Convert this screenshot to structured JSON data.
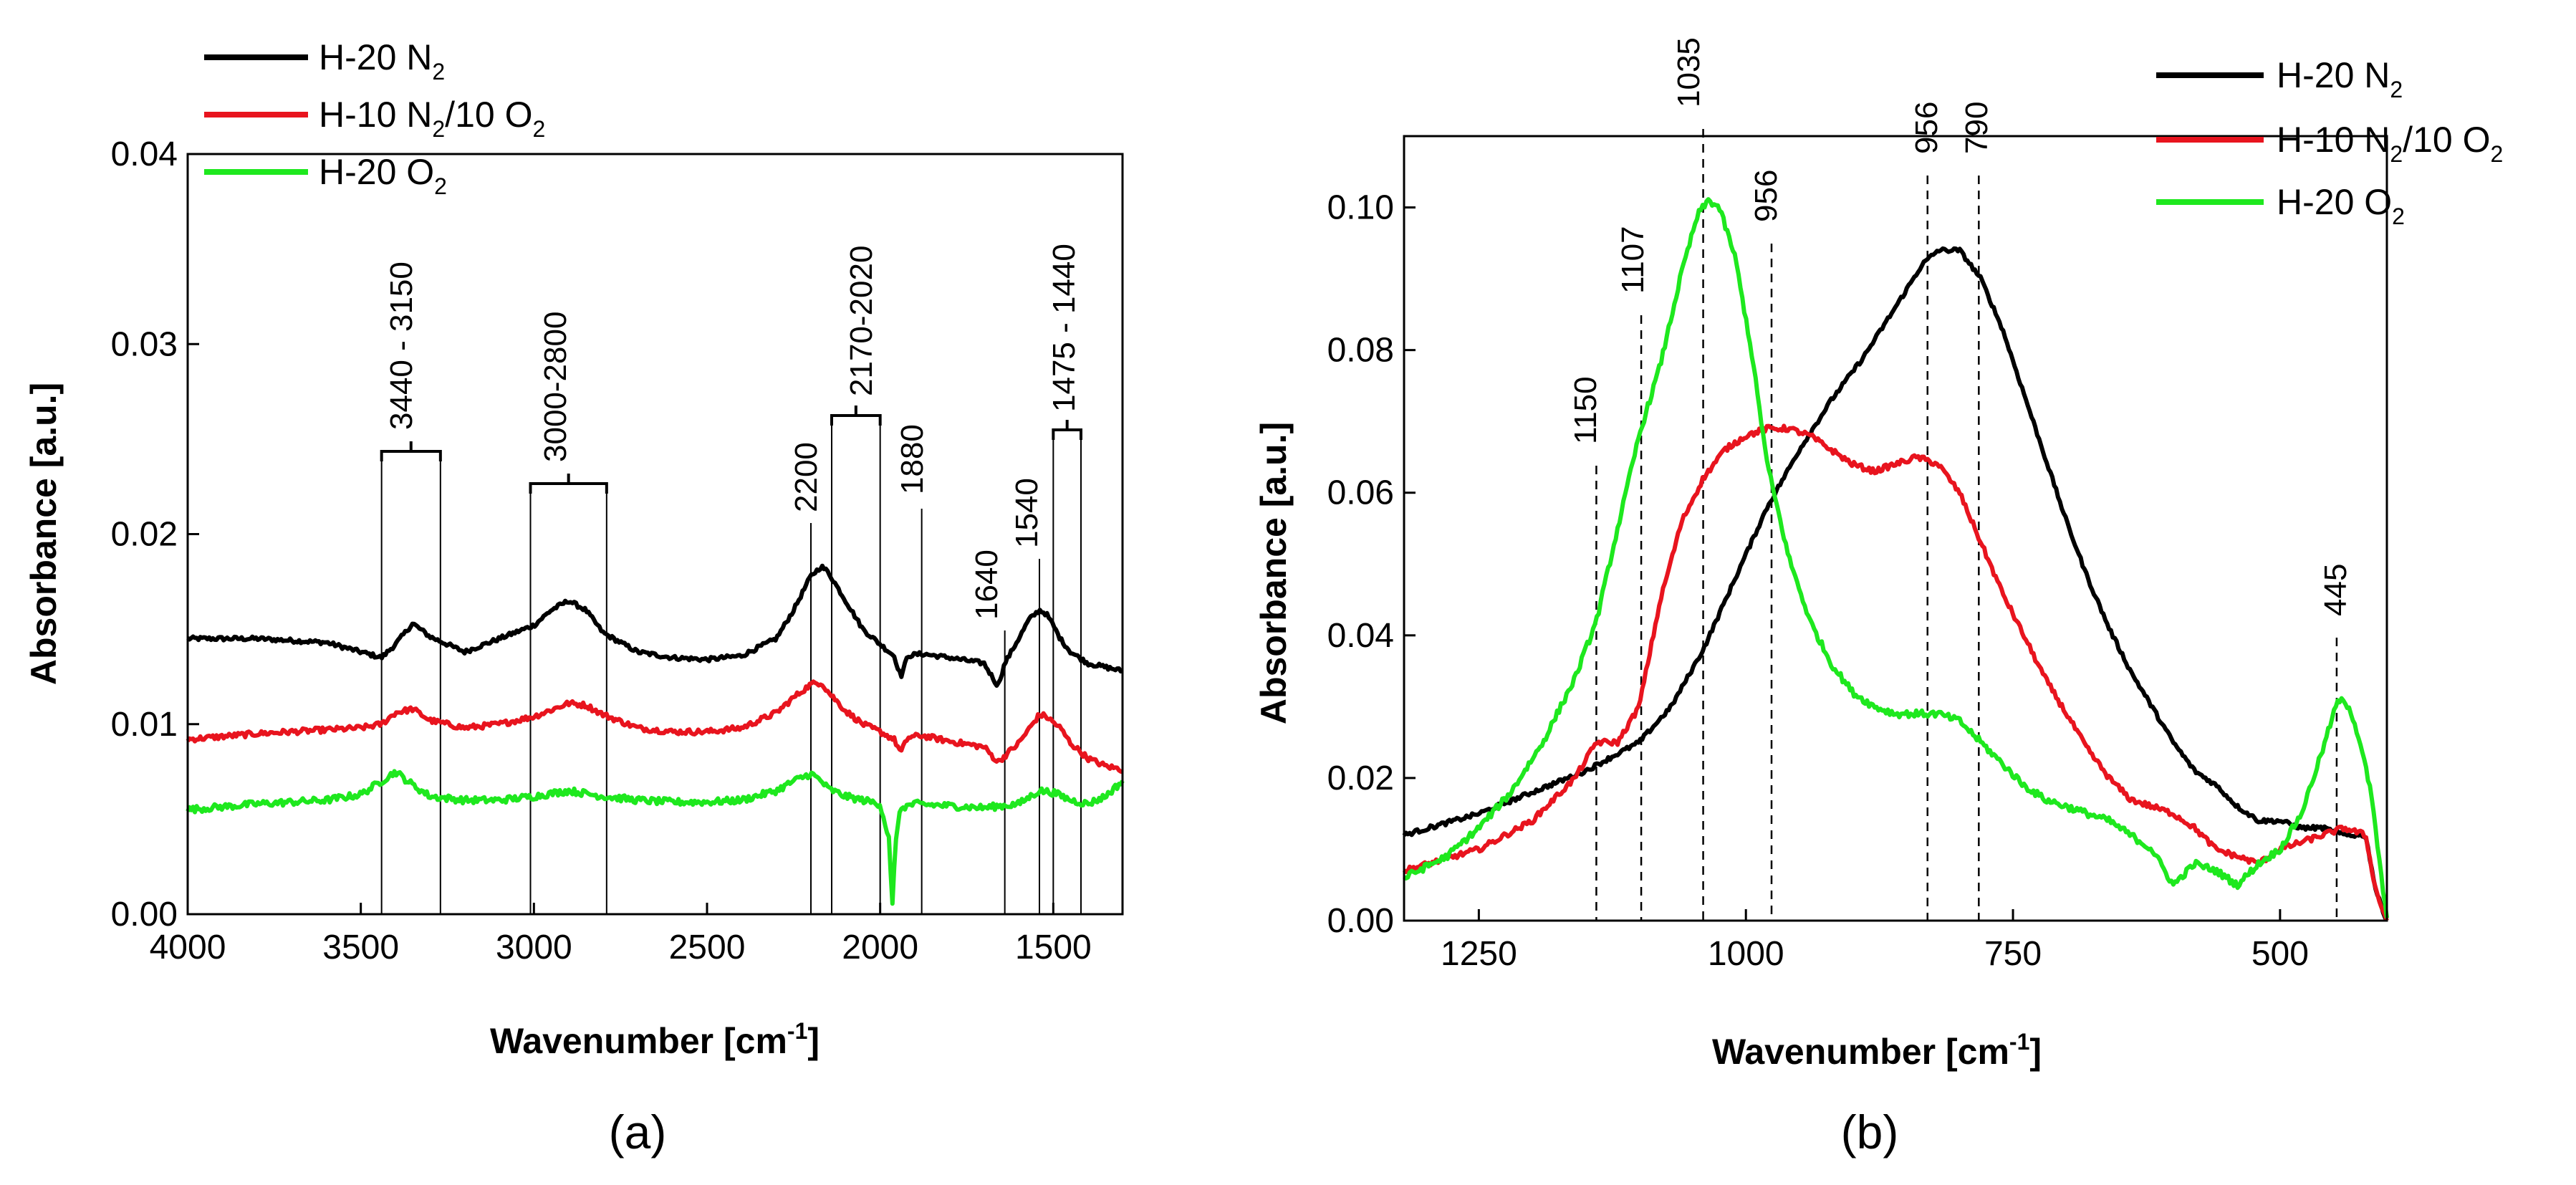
{
  "chart_data": [
    {
      "type": "line",
      "panel_label": "(a)",
      "xlabel": "Wavenumber [cm",
      "xlabel_sup": "-1",
      "xlabel_end": "]",
      "ylabel": "Absorbance [a.u.]",
      "xlim": [
        4000,
        1300
      ],
      "ylim": [
        0,
        0.04
      ],
      "xticks": [
        4000,
        3500,
        3000,
        2500,
        2000,
        1500
      ],
      "xtick_labels": [
        "4000",
        "3500",
        "3000",
        "2500",
        "2000",
        "1500"
      ],
      "yticks": [
        0,
        0.01,
        0.02,
        0.03,
        0.04
      ],
      "ytick_labels": [
        "0.00",
        "0.01",
        "0.02",
        "0.03",
        "0.04"
      ],
      "legend_position": "top-left",
      "series": [
        {
          "name": "H-20 N2",
          "label_main": "H-20 N",
          "label_sub": "2",
          "label_rest": "",
          "color": "#000000",
          "x": [
            4000,
            3800,
            3600,
            3500,
            3440,
            3400,
            3350,
            3300,
            3200,
            3100,
            3000,
            2950,
            2900,
            2850,
            2800,
            2700,
            2600,
            2500,
            2400,
            2300,
            2250,
            2200,
            2170,
            2150,
            2100,
            2050,
            2000,
            1960,
            1940,
            1920,
            1880,
            1800,
            1700,
            1660,
            1640,
            1600,
            1570,
            1540,
            1520,
            1500,
            1480,
            1450,
            1400,
            1350,
            1300
          ],
          "y": [
            0.0145,
            0.0145,
            0.0143,
            0.0138,
            0.0135,
            0.0142,
            0.0153,
            0.0146,
            0.0138,
            0.0145,
            0.0152,
            0.016,
            0.0165,
            0.016,
            0.0148,
            0.0138,
            0.0135,
            0.0134,
            0.0136,
            0.0145,
            0.016,
            0.0178,
            0.0183,
            0.018,
            0.0165,
            0.015,
            0.0142,
            0.0136,
            0.0125,
            0.0136,
            0.0137,
            0.0135,
            0.0132,
            0.012,
            0.0132,
            0.0145,
            0.0155,
            0.016,
            0.0158,
            0.0152,
            0.0145,
            0.0138,
            0.0132,
            0.013,
            0.0128
          ]
        },
        {
          "name": "H-10 N2/10 O2",
          "label_main": "H-10 N",
          "label_sub": "2",
          "label_rest": "/10 O",
          "label_sub2": "2",
          "color": "#e8141e",
          "x": [
            4000,
            3800,
            3600,
            3500,
            3440,
            3400,
            3350,
            3300,
            3200,
            3100,
            3000,
            2900,
            2850,
            2800,
            2700,
            2600,
            2500,
            2400,
            2300,
            2250,
            2200,
            2170,
            2150,
            2100,
            2050,
            2000,
            1960,
            1940,
            1920,
            1880,
            1800,
            1700,
            1660,
            1600,
            1560,
            1540,
            1520,
            1480,
            1450,
            1400,
            1350,
            1300
          ],
          "y": [
            0.0092,
            0.0095,
            0.0097,
            0.0098,
            0.01,
            0.0106,
            0.0108,
            0.0102,
            0.0098,
            0.01,
            0.0104,
            0.0111,
            0.011,
            0.0105,
            0.0098,
            0.0096,
            0.0096,
            0.0098,
            0.0106,
            0.0114,
            0.0121,
            0.0122,
            0.0117,
            0.0107,
            0.01,
            0.0096,
            0.0092,
            0.0085,
            0.0093,
            0.0094,
            0.0091,
            0.0088,
            0.008,
            0.009,
            0.01,
            0.0105,
            0.0104,
            0.0098,
            0.009,
            0.0082,
            0.0078,
            0.0076
          ]
        },
        {
          "name": "H-20 O2",
          "label_main": "H-20 O",
          "label_sub": "2",
          "label_rest": "",
          "color": "#1ee81e",
          "x": [
            4000,
            3800,
            3600,
            3500,
            3440,
            3400,
            3350,
            3300,
            3200,
            3100,
            3000,
            2900,
            2800,
            2700,
            2600,
            2500,
            2400,
            2300,
            2250,
            2200,
            2170,
            2150,
            2100,
            2050,
            2000,
            1975,
            1965,
            1955,
            1940,
            1900,
            1800,
            1700,
            1600,
            1540,
            1500,
            1450,
            1400,
            1350,
            1300
          ],
          "y": [
            0.0055,
            0.0058,
            0.006,
            0.0063,
            0.007,
            0.0075,
            0.0068,
            0.0062,
            0.006,
            0.006,
            0.0062,
            0.0065,
            0.0062,
            0.006,
            0.0059,
            0.0059,
            0.006,
            0.0065,
            0.007,
            0.0074,
            0.007,
            0.0066,
            0.0062,
            0.006,
            0.0058,
            0.004,
            0.0003,
            0.004,
            0.0056,
            0.0058,
            0.0057,
            0.0056,
            0.0058,
            0.0065,
            0.0064,
            0.006,
            0.0058,
            0.0062,
            0.007
          ]
        }
      ],
      "annotations": [
        {
          "text": "3440 - 3150",
          "lines": [
            3440,
            3270
          ]
        },
        {
          "text": "3000-2800",
          "lines": [
            3010,
            2790
          ]
        },
        {
          "text": "2200",
          "lines": [
            2200
          ]
        },
        {
          "text": "2170-2020",
          "lines": [
            2140,
            2000
          ]
        },
        {
          "text": "1880",
          "lines": [
            1880
          ]
        },
        {
          "text": "1640",
          "lines": [
            1640
          ]
        },
        {
          "text": "1540",
          "lines": [
            1540
          ]
        },
        {
          "text": "1475 - 1440",
          "lines": [
            1500,
            1420
          ]
        }
      ]
    },
    {
      "type": "line",
      "panel_label": "(b)",
      "xlabel": "Wavenumber [cm",
      "xlabel_sup": "-1",
      "xlabel_end": "]",
      "ylabel": "Absorbance [a.u.]",
      "xlim": [
        1320,
        400
      ],
      "ylim": [
        0,
        0.11
      ],
      "xticks": [
        1250,
        1000,
        750,
        500
      ],
      "xtick_labels": [
        "1250",
        "1000",
        "750",
        "500"
      ],
      "yticks": [
        0,
        0.02,
        0.04,
        0.06,
        0.08,
        0.1
      ],
      "ytick_labels": [
        "0.00",
        "0.02",
        "0.04",
        "0.06",
        "0.08",
        "0.10"
      ],
      "legend_position": "top-right",
      "series": [
        {
          "name": "H-20 N2",
          "label_main": "H-20 N",
          "label_sub": "2",
          "label_rest": "",
          "color": "#000000",
          "x": [
            1320,
            1250,
            1200,
            1150,
            1100,
            1070,
            1040,
            1010,
            980,
            950,
            920,
            890,
            860,
            835,
            820,
            800,
            780,
            760,
            740,
            720,
            700,
            680,
            660,
            640,
            620,
            600,
            580,
            560,
            540,
            520,
            500,
            480,
            460,
            440,
            420,
            410,
            400
          ],
          "y": [
            0.012,
            0.015,
            0.018,
            0.021,
            0.025,
            0.03,
            0.038,
            0.048,
            0.058,
            0.066,
            0.073,
            0.079,
            0.086,
            0.092,
            0.094,
            0.094,
            0.09,
            0.083,
            0.074,
            0.065,
            0.056,
            0.048,
            0.041,
            0.035,
            0.03,
            0.025,
            0.021,
            0.019,
            0.016,
            0.014,
            0.014,
            0.013,
            0.013,
            0.012,
            0.012,
            0.004,
            0.0
          ]
        },
        {
          "name": "H-10 N2/10 O2",
          "label_main": "H-10 N",
          "label_sub": "2",
          "label_rest": "/10 O",
          "label_sub2": "2",
          "color": "#e8141e",
          "x": [
            1320,
            1250,
            1200,
            1160,
            1140,
            1120,
            1100,
            1080,
            1060,
            1040,
            1020,
            1000,
            980,
            960,
            940,
            920,
            900,
            880,
            860,
            840,
            820,
            800,
            780,
            760,
            740,
            720,
            700,
            680,
            660,
            640,
            620,
            600,
            580,
            560,
            540,
            520,
            500,
            480,
            460,
            440,
            420,
            410,
            400
          ],
          "y": [
            0.007,
            0.01,
            0.014,
            0.02,
            0.025,
            0.025,
            0.03,
            0.045,
            0.056,
            0.062,
            0.066,
            0.068,
            0.069,
            0.069,
            0.068,
            0.066,
            0.064,
            0.063,
            0.064,
            0.065,
            0.064,
            0.06,
            0.053,
            0.046,
            0.04,
            0.034,
            0.029,
            0.024,
            0.02,
            0.017,
            0.016,
            0.015,
            0.013,
            0.01,
            0.009,
            0.008,
            0.01,
            0.011,
            0.012,
            0.013,
            0.012,
            0.004,
            0.0
          ]
        },
        {
          "name": "H-20 O2",
          "label_main": "H-20 O",
          "label_sub": "2",
          "label_rest": "",
          "color": "#1ee81e",
          "x": [
            1320,
            1280,
            1250,
            1220,
            1190,
            1160,
            1140,
            1120,
            1100,
            1080,
            1060,
            1045,
            1035,
            1025,
            1010,
            995,
            980,
            960,
            940,
            920,
            900,
            880,
            860,
            840,
            820,
            800,
            780,
            760,
            740,
            720,
            700,
            680,
            660,
            640,
            620,
            600,
            580,
            560,
            540,
            520,
            500,
            480,
            460,
            450,
            445,
            435,
            425,
            415,
            410,
            400
          ],
          "y": [
            0.006,
            0.009,
            0.013,
            0.018,
            0.025,
            0.034,
            0.042,
            0.055,
            0.068,
            0.078,
            0.091,
            0.099,
            0.101,
            0.1,
            0.093,
            0.08,
            0.064,
            0.051,
            0.042,
            0.036,
            0.032,
            0.03,
            0.029,
            0.029,
            0.029,
            0.028,
            0.025,
            0.022,
            0.019,
            0.017,
            0.016,
            0.015,
            0.014,
            0.012,
            0.01,
            0.005,
            0.008,
            0.007,
            0.005,
            0.008,
            0.01,
            0.015,
            0.024,
            0.029,
            0.031,
            0.03,
            0.025,
            0.018,
            0.012,
            0.0
          ]
        }
      ],
      "annotations": [
        {
          "text": "1150",
          "x": 1140
        },
        {
          "text": "1107",
          "x": 1098
        },
        {
          "text": "1035",
          "x": 1040
        },
        {
          "text": "956",
          "x": 976
        },
        {
          "text": "956",
          "x": 830
        },
        {
          "text": "790",
          "x": 782
        },
        {
          "text": "445",
          "x": 447
        }
      ]
    }
  ]
}
